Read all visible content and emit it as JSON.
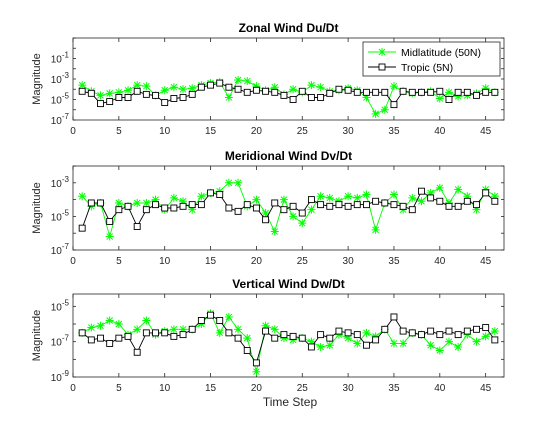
{
  "figure": {
    "xlabel": "Time Step",
    "background": "#ffffff"
  },
  "chart_data": [
    {
      "type": "line",
      "title": "Zonal Wind Du/Dt",
      "xlabel": "",
      "ylabel": "Magnitude",
      "yscale": "log",
      "xlim": [
        0,
        47
      ],
      "ylim_exp": [
        -7,
        1
      ],
      "xticks": [
        0,
        5,
        10,
        15,
        20,
        25,
        30,
        35,
        40,
        45
      ],
      "yticks_exp": [
        -7,
        -5,
        -3,
        -1
      ],
      "legend_position": "top-right",
      "x": [
        1,
        2,
        3,
        4,
        5,
        6,
        7,
        8,
        9,
        10,
        11,
        12,
        13,
        14,
        15,
        16,
        17,
        18,
        19,
        20,
        21,
        22,
        23,
        24,
        25,
        26,
        27,
        28,
        29,
        30,
        31,
        32,
        33,
        34,
        35,
        36,
        37,
        38,
        39,
        40,
        41,
        42,
        43,
        44,
        45,
        46
      ],
      "series": [
        {
          "name": "Midlatitude (50N)",
          "color": "#00ff00",
          "marker": "asterisk",
          "log10_values": [
            -3.6,
            -4.2,
            -4.6,
            -4.4,
            -4.3,
            -4.1,
            -3.6,
            -3.7,
            -4.6,
            -4.1,
            -3.8,
            -4.0,
            -3.9,
            -3.6,
            -3.4,
            -3.3,
            -4.8,
            -3.1,
            -3.2,
            -3.7,
            -4.1,
            -3.8,
            -4.5,
            -4.0,
            -4.3,
            -3.6,
            -3.8,
            -4.2,
            -4.1,
            -3.9,
            -4.1,
            -4.8,
            -6.4,
            -6.0,
            -3.7,
            -4.2,
            -4.4,
            -4.3,
            -4.2,
            -4.9,
            -4.3,
            -4.7,
            -4.6,
            -4.4,
            -3.9,
            -4.3
          ]
        },
        {
          "name": "Tropic (5N)",
          "color": "#000000",
          "marker": "square",
          "log10_values": [
            -4.2,
            -4.4,
            -5.4,
            -5.2,
            -4.8,
            -4.8,
            -4.2,
            -4.5,
            -4.6,
            -5.3,
            -4.9,
            -4.8,
            -4.5,
            -3.8,
            -3.6,
            -3.4,
            -3.8,
            -4.0,
            -4.3,
            -4.1,
            -4.2,
            -4.3,
            -4.6,
            -5.0,
            -4.2,
            -4.8,
            -4.8,
            -4.4,
            -4.0,
            -4.1,
            -4.3,
            -4.3,
            -4.3,
            -4.3,
            -5.5,
            -4.2,
            -4.3,
            -4.3,
            -4.3,
            -4.2,
            -5.0,
            -4.3,
            -4.3,
            -4.6,
            -4.3,
            -4.3
          ]
        }
      ]
    },
    {
      "type": "line",
      "title": "Meridional Wind Dv/Dt",
      "xlabel": "",
      "ylabel": "Magnitude",
      "yscale": "log",
      "xlim": [
        0,
        47
      ],
      "ylim_exp": [
        -7,
        -2
      ],
      "xticks": [
        0,
        5,
        10,
        15,
        20,
        25,
        30,
        35,
        40,
        45
      ],
      "yticks_exp": [
        -7,
        -5,
        -3
      ],
      "x": [
        1,
        2,
        3,
        4,
        5,
        6,
        7,
        8,
        9,
        10,
        11,
        12,
        13,
        14,
        15,
        16,
        17,
        18,
        19,
        20,
        21,
        22,
        23,
        24,
        25,
        26,
        27,
        28,
        29,
        30,
        31,
        32,
        33,
        34,
        35,
        36,
        37,
        38,
        39,
        40,
        41,
        42,
        43,
        44,
        45,
        46
      ],
      "series": [
        {
          "name": "Midlatitude (50N)",
          "color": "#00ff00",
          "marker": "asterisk",
          "log10_values": [
            -3.8,
            -4.4,
            -4.2,
            -6.2,
            -4.2,
            -4.4,
            -4.2,
            -4.2,
            -4.0,
            -4.6,
            -3.9,
            -4.1,
            -4.6,
            -3.8,
            -3.6,
            -3.5,
            -3.0,
            -3.0,
            -4.4,
            -4.0,
            -4.8,
            -5.9,
            -4.0,
            -5.0,
            -5.4,
            -4.6,
            -3.8,
            -3.9,
            -4.1,
            -3.8,
            -3.9,
            -3.7,
            -5.8,
            -4.2,
            -3.7,
            -4.6,
            -3.9,
            -4.1,
            -3.6,
            -3.3,
            -4.2,
            -3.4,
            -3.8,
            -4.6,
            -3.4,
            -3.8
          ]
        },
        {
          "name": "Tropic (5N)",
          "color": "#000000",
          "marker": "square",
          "log10_values": [
            -5.7,
            -4.2,
            -4.2,
            -5.3,
            -4.6,
            -4.4,
            -5.6,
            -4.6,
            -4.3,
            -4.5,
            -4.5,
            -4.4,
            -4.3,
            -4.3,
            -3.6,
            -3.7,
            -4.5,
            -4.7,
            -4.3,
            -4.5,
            -5.2,
            -4.2,
            -4.6,
            -4.4,
            -4.8,
            -4.0,
            -4.3,
            -4.4,
            -4.3,
            -4.4,
            -4.3,
            -4.3,
            -4.1,
            -4.2,
            -4.3,
            -4.4,
            -4.6,
            -3.5,
            -3.9,
            -4.1,
            -4.4,
            -4.4,
            -4.1,
            -4.3,
            -3.6,
            -4.1
          ]
        }
      ]
    },
    {
      "type": "line",
      "title": "Vertical Wind Dw/Dt",
      "xlabel": "Time Step",
      "ylabel": "Magnitude",
      "yscale": "log",
      "xlim": [
        0,
        47
      ],
      "ylim_exp": [
        -9,
        -4.3
      ],
      "xticks": [
        0,
        5,
        10,
        15,
        20,
        25,
        30,
        35,
        40,
        45
      ],
      "yticks_exp": [
        -9,
        -7,
        -5
      ],
      "x": [
        1,
        2,
        3,
        4,
        5,
        6,
        7,
        8,
        9,
        10,
        11,
        12,
        13,
        14,
        15,
        16,
        17,
        18,
        19,
        20,
        21,
        22,
        23,
        24,
        25,
        26,
        27,
        28,
        29,
        30,
        31,
        32,
        33,
        34,
        35,
        36,
        37,
        38,
        39,
        40,
        41,
        42,
        43,
        44,
        45,
        46
      ],
      "series": [
        {
          "name": "Midlatitude (50N)",
          "color": "#00ff00",
          "marker": "asterisk",
          "log10_values": [
            -6.5,
            -6.2,
            -6.1,
            -5.8,
            -6.0,
            -6.6,
            -6.3,
            -5.8,
            -6.6,
            -6.4,
            -6.3,
            -6.3,
            -6.3,
            -6.0,
            -5.4,
            -6.5,
            -5.6,
            -6.3,
            -6.8,
            -8.7,
            -6.1,
            -6.3,
            -6.8,
            -6.9,
            -6.8,
            -7.0,
            -7.3,
            -7.2,
            -6.6,
            -6.8,
            -7.1,
            -6.5,
            -6.7,
            -6.3,
            -7.1,
            -7.1,
            -6.5,
            -6.6,
            -7.2,
            -7.5,
            -7.0,
            -7.3,
            -6.6,
            -7.0,
            -6.7,
            -6.4
          ]
        },
        {
          "name": "Tropic (5N)",
          "color": "#000000",
          "marker": "square",
          "log10_values": [
            -6.5,
            -6.9,
            -6.8,
            -7.1,
            -6.8,
            -6.7,
            -7.6,
            -6.5,
            -6.5,
            -6.5,
            -6.7,
            -6.6,
            -6.3,
            -5.8,
            -5.5,
            -5.8,
            -6.5,
            -6.8,
            -7.5,
            -8.2,
            -6.4,
            -6.8,
            -6.6,
            -6.7,
            -6.8,
            -7.3,
            -6.6,
            -6.8,
            -6.4,
            -6.5,
            -6.6,
            -7.2,
            -6.9,
            -6.3,
            -5.6,
            -6.4,
            -6.5,
            -6.6,
            -6.4,
            -6.6,
            -6.4,
            -6.6,
            -6.4,
            -6.3,
            -6.2,
            -6.9
          ]
        }
      ]
    }
  ]
}
